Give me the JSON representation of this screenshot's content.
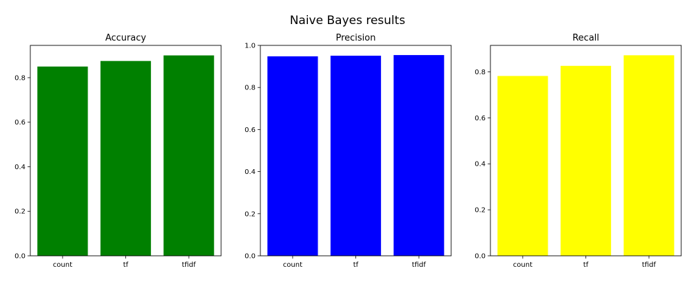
{
  "figure": {
    "title": "Naive Bayes results"
  },
  "chart_data": [
    {
      "type": "bar",
      "title": "Accuracy",
      "categories": [
        "count",
        "tf",
        "tfidf"
      ],
      "values": [
        0.85,
        0.875,
        0.9
      ],
      "ylim": [
        0,
        0.945
      ],
      "yticks": [
        0.0,
        0.2,
        0.4,
        0.6,
        0.8
      ],
      "ytick_labels": [
        "0.0",
        "0.2",
        "0.4",
        "0.6",
        "0.8"
      ],
      "color": "#008000",
      "grid": false
    },
    {
      "type": "bar",
      "title": "Precision",
      "categories": [
        "count",
        "tf",
        "tfidf"
      ],
      "values": [
        0.948,
        0.951,
        0.954
      ],
      "ylim": [
        0,
        1.0
      ],
      "yticks": [
        0.0,
        0.2,
        0.4,
        0.6,
        0.8,
        1.0
      ],
      "ytick_labels": [
        "0.0",
        "0.2",
        "0.4",
        "0.6",
        "0.8",
        "1.0"
      ],
      "color": "#0000ff",
      "grid": false
    },
    {
      "type": "bar",
      "title": "Recall",
      "categories": [
        "count",
        "tf",
        "tfidf"
      ],
      "values": [
        0.782,
        0.826,
        0.872
      ],
      "ylim": [
        0,
        0.915
      ],
      "yticks": [
        0.0,
        0.2,
        0.4,
        0.6,
        0.8
      ],
      "ytick_labels": [
        "0.0",
        "0.2",
        "0.4",
        "0.6",
        "0.8"
      ],
      "color": "#ffff00",
      "grid": false
    }
  ]
}
